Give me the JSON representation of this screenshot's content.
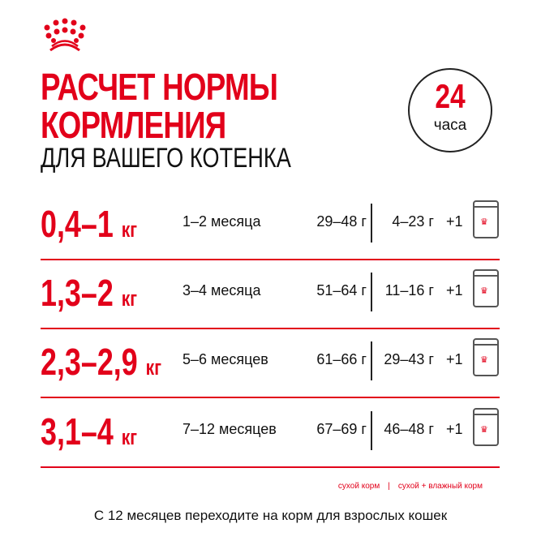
{
  "brand_color": "#e2001a",
  "title_line1": "РАСЧЕТ НОРМЫ",
  "title_line2": "КОРМЛЕНИЯ",
  "subtitle": "ДЛЯ ВАШЕГО КОТЕНКА",
  "badge": {
    "number": "24",
    "unit": "часа"
  },
  "rows": [
    {
      "weight": "0,4–1",
      "unit": "кг",
      "age": "1–2 месяца",
      "dry": "29–48 г",
      "wet": "4–23 г",
      "plus": "+1"
    },
    {
      "weight": "1,3–2",
      "unit": "кг",
      "age": "3–4 месяца",
      "dry": "51–64 г",
      "wet": "11–16 г",
      "plus": "+1"
    },
    {
      "weight": "2,3–2,9",
      "unit": "кг",
      "age": "5–6 месяцев",
      "dry": "61–66 г",
      "wet": "29–43 г",
      "plus": "+1"
    },
    {
      "weight": "3,1–4",
      "unit": "кг",
      "age": "7–12 месяцев",
      "dry": "67–69 г",
      "wet": "46–48 г",
      "plus": "+1"
    }
  ],
  "legend": {
    "dry": "сухой корм",
    "sep": "|",
    "mixed": "сухой + влажный корм"
  },
  "footer": "С 12 месяцев переходите на корм для взрослых кошек",
  "icons": {
    "logo": "crown-icon",
    "pouch": "pouch-icon"
  }
}
